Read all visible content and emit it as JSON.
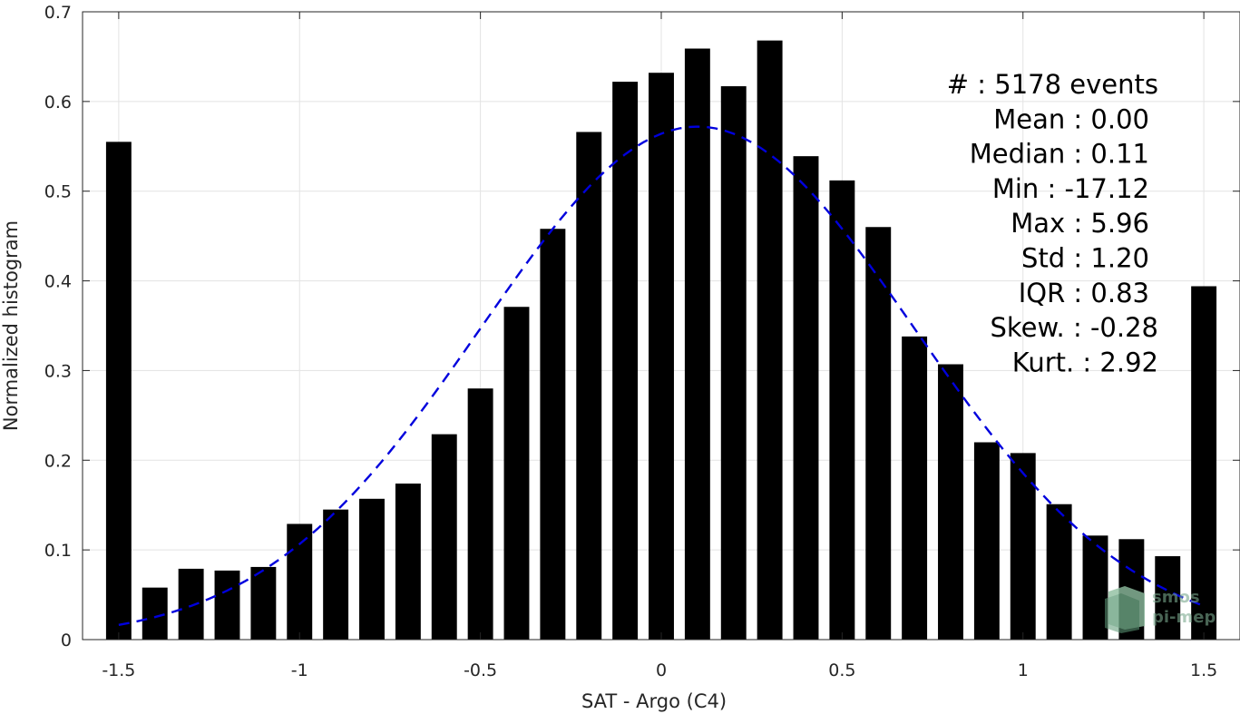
{
  "chart_data": {
    "type": "bar",
    "xlabel": "SAT - Argo (C4)",
    "ylabel": "Normalized histogram",
    "xlim": [
      -1.6,
      1.6
    ],
    "ylim": [
      0,
      0.7
    ],
    "xticks": [
      -1.5,
      -1,
      -0.5,
      0,
      0.5,
      1,
      1.5
    ],
    "xtick_labels": [
      "-1.5",
      "-1",
      "-0.5",
      "0",
      "0.5",
      "1",
      "1.5"
    ],
    "yticks": [
      0,
      0.1,
      0.2,
      0.3,
      0.4,
      0.5,
      0.6,
      0.7
    ],
    "ytick_labels": [
      "0",
      "0.1",
      "0.2",
      "0.3",
      "0.4",
      "0.5",
      "0.6",
      "0.7"
    ],
    "grid": true,
    "bar_color": "#000000",
    "bar_width": 0.07,
    "x": [
      -1.5,
      -1.4,
      -1.3,
      -1.2,
      -1.1,
      -1.0,
      -0.9,
      -0.8,
      -0.7,
      -0.6,
      -0.5,
      -0.4,
      -0.3,
      -0.2,
      -0.1,
      0.0,
      0.1,
      0.2,
      0.3,
      0.4,
      0.5,
      0.6,
      0.7,
      0.8,
      0.9,
      1.0,
      1.1,
      1.2,
      1.3,
      1.4,
      1.5
    ],
    "values": [
      0.555,
      0.058,
      0.079,
      0.077,
      0.081,
      0.129,
      0.145,
      0.157,
      0.174,
      0.229,
      0.28,
      0.371,
      0.458,
      0.566,
      0.622,
      0.632,
      0.659,
      0.617,
      0.668,
      0.539,
      0.512,
      0.46,
      0.338,
      0.307,
      0.22,
      0.208,
      0.151,
      0.116,
      0.112,
      0.093,
      0.394
    ],
    "fit_curve": {
      "type": "gaussian",
      "style": "dashed",
      "color": "#0000dd",
      "x_range": [
        -1.5,
        1.5
      ],
      "mu": 0.1,
      "sigma": 0.6,
      "peak": 0.572
    },
    "stats": [
      {
        "label": "#  : 5178 events",
        "anchor": "end",
        "x_offset": 0
      },
      {
        "label": "Mean : 0.00",
        "anchor": "end",
        "x_offset": -10
      },
      {
        "label": "Median : 0.11",
        "anchor": "end",
        "x_offset": -10
      },
      {
        "label": "Min : -17.12",
        "anchor": "end",
        "x_offset": -10
      },
      {
        "label": "Max : 5.96",
        "anchor": "end",
        "x_offset": -10
      },
      {
        "label": "Std : 1.20",
        "anchor": "end",
        "x_offset": -10
      },
      {
        "label": "IQR : 0.83",
        "anchor": "end",
        "x_offset": -10
      },
      {
        "label": "Skew. : -0.28",
        "anchor": "end",
        "x_offset": 0
      },
      {
        "label": "Kurt. : 2.92",
        "anchor": "end",
        "x_offset": 0
      }
    ]
  },
  "logo": {
    "line1": "smos",
    "line2": "pi-mep"
  }
}
